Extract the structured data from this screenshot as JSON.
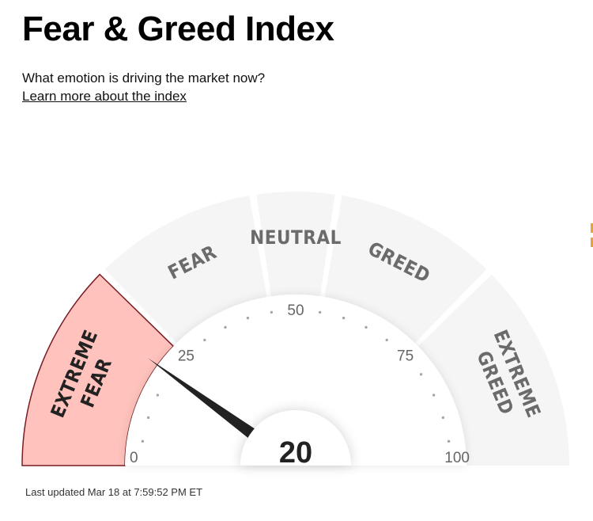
{
  "header": {
    "title": "Fear & Greed Index",
    "subtitle": "What emotion is driving the market now?",
    "learn_more_link": "Learn more about the index"
  },
  "gauge": {
    "value": 20,
    "value_label": "20",
    "active_segment": "extreme-fear",
    "segments": [
      {
        "id": "extreme-fear",
        "from": 0,
        "to": 25,
        "lines": [
          "EXTREME",
          "FEAR"
        ]
      },
      {
        "id": "fear",
        "from": 25,
        "to": 45,
        "lines": [
          "FEAR"
        ]
      },
      {
        "id": "neutral",
        "from": 45,
        "to": 55,
        "lines": [
          "NEUTRAL"
        ]
      },
      {
        "id": "greed",
        "from": 55,
        "to": 75,
        "lines": [
          "GREED"
        ]
      },
      {
        "id": "extreme-greed",
        "from": 75,
        "to": 100,
        "lines": [
          "EXTREME",
          "GREED"
        ]
      }
    ],
    "ticks": [
      {
        "value": 0,
        "label": "0"
      },
      {
        "value": 25,
        "label": "25"
      },
      {
        "value": 50,
        "label": "50"
      },
      {
        "value": 75,
        "label": "75"
      },
      {
        "value": 100,
        "label": "100"
      }
    ],
    "colors": {
      "segment_inactive": "#f5f5f5",
      "segment_active": "#ffc2bc",
      "segment_active_border": "#7a1c23",
      "label_inactive": "#6b6b6b",
      "label_active": "#222222",
      "needle": "#222222",
      "tick_dot": "#a6a6a6",
      "tick_label": "#666666"
    }
  },
  "footer": {
    "last_updated": "Last updated Mar 18 at 7:59:52 PM ET"
  }
}
